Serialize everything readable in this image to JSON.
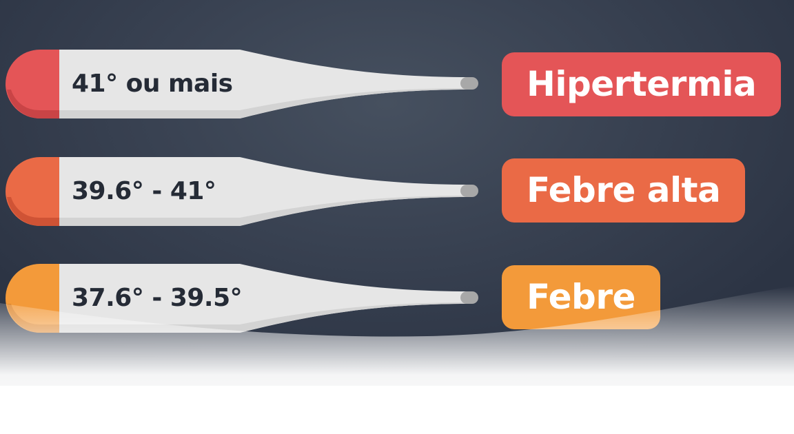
{
  "rows": [
    {
      "range": "41° ou mais",
      "category": "Hipertermia",
      "color": "#e45557",
      "shade": "#c94446"
    },
    {
      "range": "39.6° - 41°",
      "category": "Febre alta",
      "color": "#ea6a46",
      "shade": "#cf5335"
    },
    {
      "range": "37.6° - 39.5°",
      "category": "Febre",
      "color": "#f39a3a",
      "shade": "#dd8429"
    }
  ],
  "colors": {
    "background": "#3a4353",
    "thermometer_body": "#e6e6e6",
    "thermometer_tip": "#a8a8a8",
    "label_text": "#252b36"
  }
}
